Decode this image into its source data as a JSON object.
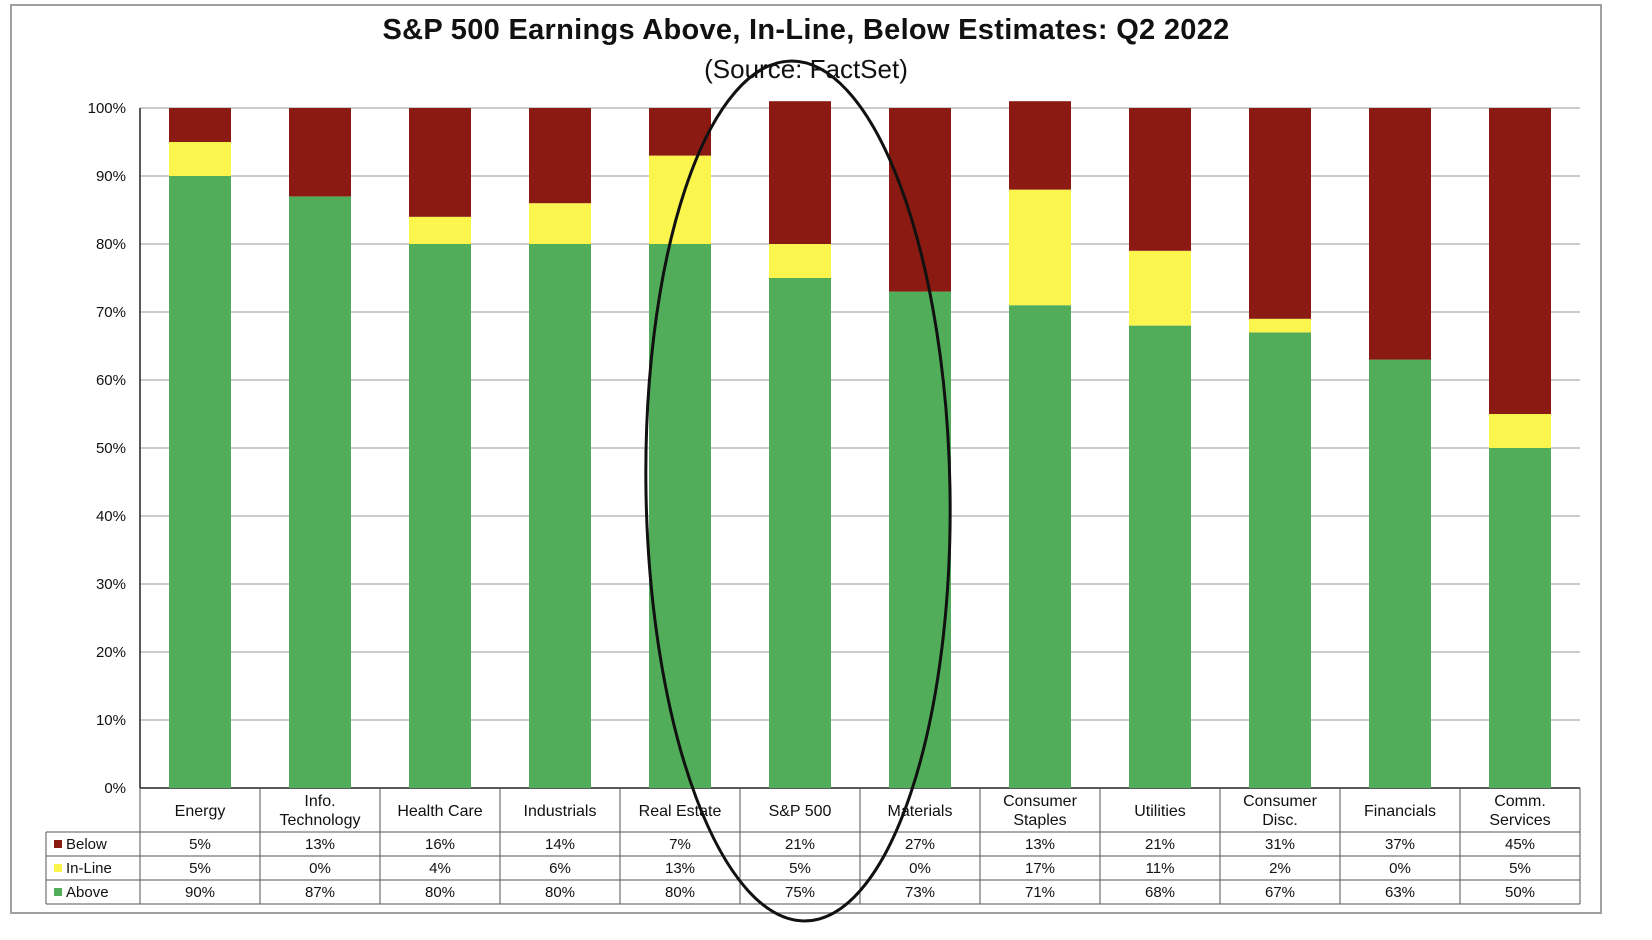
{
  "chart_data": {
    "type": "bar",
    "stacked": true,
    "title": "S&P 500 Earnings Above, In-Line, Below Estimates: Q2 2022",
    "subtitle": "(Source: FactSet)",
    "categories": [
      [
        "Energy"
      ],
      [
        "Info.",
        "Technology"
      ],
      [
        "Health Care"
      ],
      [
        "Industrials"
      ],
      [
        "Real Estate"
      ],
      [
        "S&P 500"
      ],
      [
        "Materials"
      ],
      [
        "Consumer",
        "Staples"
      ],
      [
        "Utilities"
      ],
      [
        "Consumer",
        "Disc."
      ],
      [
        "Financials"
      ],
      [
        "Comm.",
        "Services"
      ]
    ],
    "ylim": [
      0,
      100
    ],
    "yticks": [
      "0%",
      "10%",
      "20%",
      "30%",
      "40%",
      "50%",
      "60%",
      "70%",
      "80%",
      "90%",
      "100%"
    ],
    "grid": true,
    "legend_placement": "data table, left of rows",
    "series": [
      {
        "name": "Above",
        "color": "#52ad5a",
        "values": [
          90,
          87,
          80,
          80,
          80,
          75,
          73,
          71,
          68,
          67,
          63,
          50
        ],
        "labels": [
          "90%",
          "87%",
          "80%",
          "80%",
          "80%",
          "75%",
          "73%",
          "71%",
          "68%",
          "67%",
          "63%",
          "50%"
        ]
      },
      {
        "name": "In-Line",
        "color": "#fbf54e",
        "values": [
          5,
          0,
          4,
          6,
          13,
          5,
          0,
          17,
          11,
          2,
          0,
          5
        ],
        "labels": [
          "5%",
          "0%",
          "4%",
          "6%",
          "13%",
          "5%",
          "0%",
          "17%",
          "11%",
          "2%",
          "0%",
          "5%"
        ]
      },
      {
        "name": "Below",
        "color": "#8b1a12",
        "values": [
          5,
          13,
          16,
          14,
          7,
          21,
          27,
          13,
          21,
          31,
          37,
          45
        ],
        "labels": [
          "5%",
          "13%",
          "16%",
          "14%",
          "7%",
          "21%",
          "27%",
          "13%",
          "21%",
          "31%",
          "37%",
          "45%"
        ]
      }
    ],
    "table_row_order": [
      "Below",
      "In-Line",
      "Above"
    ],
    "annotation": "hand-drawn ellipse around Real Estate, S&P 500 and Materials columns"
  }
}
